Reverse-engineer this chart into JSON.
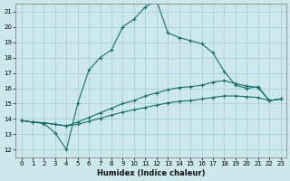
{
  "title": "",
  "xlabel": "Humidex (Indice chaleur)",
  "background_color": "#cce8ec",
  "grid_color": "#aad0d8",
  "line_color": "#1a6e6a",
  "xlim": [
    -0.5,
    23.5
  ],
  "ylim": [
    11.5,
    21.5
  ],
  "yticks": [
    12,
    13,
    14,
    15,
    16,
    17,
    18,
    19,
    20,
    21
  ],
  "xticks": [
    0,
    1,
    2,
    3,
    4,
    5,
    6,
    7,
    8,
    9,
    10,
    11,
    12,
    13,
    14,
    15,
    16,
    17,
    18,
    19,
    20,
    21,
    22,
    23
  ],
  "curve1_x": [
    0,
    1,
    2,
    3,
    4,
    5,
    6,
    7,
    8,
    9,
    10,
    11,
    12,
    13,
    14,
    15,
    16,
    17,
    18,
    19,
    20,
    21,
    22,
    23
  ],
  "curve1_y": [
    13.9,
    13.8,
    13.7,
    13.1,
    12.0,
    15.0,
    17.2,
    18.0,
    18.5,
    20.0,
    20.5,
    21.3,
    21.7,
    19.6,
    19.3,
    19.1,
    18.9,
    18.3,
    17.1,
    16.2,
    16.0,
    16.1,
    15.2,
    15.3
  ],
  "curve2_x": [
    0,
    1,
    2,
    3,
    4,
    5,
    6,
    7,
    8,
    9,
    10,
    11,
    12,
    13,
    14,
    15,
    16,
    17,
    18,
    19,
    20,
    21,
    22,
    23
  ],
  "curve2_y": [
    13.9,
    13.8,
    13.75,
    13.65,
    13.55,
    13.8,
    14.1,
    14.4,
    14.7,
    15.0,
    15.2,
    15.5,
    15.7,
    15.9,
    16.05,
    16.1,
    16.2,
    16.4,
    16.5,
    16.3,
    16.15,
    16.05,
    15.2,
    15.3
  ],
  "curve3_x": [
    0,
    1,
    2,
    3,
    4,
    5,
    6,
    7,
    8,
    9,
    10,
    11,
    12,
    13,
    14,
    15,
    16,
    17,
    18,
    19,
    20,
    21,
    22,
    23
  ],
  "curve3_y": [
    13.9,
    13.8,
    13.75,
    13.65,
    13.55,
    13.65,
    13.85,
    14.05,
    14.25,
    14.45,
    14.6,
    14.75,
    14.9,
    15.05,
    15.15,
    15.2,
    15.3,
    15.4,
    15.5,
    15.5,
    15.45,
    15.4,
    15.2,
    15.3
  ],
  "marker": "+",
  "markersize": 3,
  "linewidth": 0.8,
  "tick_fontsize": 5,
  "xlabel_fontsize": 6
}
